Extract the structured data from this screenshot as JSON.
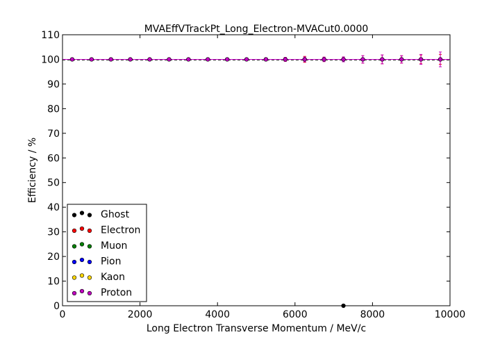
{
  "chart_data": {
    "type": "scatter",
    "title": "MVAEffVTrackPt_Long_Electron-MVACut0.0000",
    "xlabel": "Long Electron Transverse Momentum / MeV/c",
    "ylabel": "Efficiency / %",
    "xlim": [
      0,
      10000
    ],
    "ylim": [
      0,
      110
    ],
    "xticks": [
      0,
      2000,
      4000,
      6000,
      8000,
      10000
    ],
    "yticks": [
      0,
      10,
      20,
      30,
      40,
      50,
      60,
      70,
      80,
      90,
      100,
      110
    ],
    "grid": false,
    "legend_position": "bottom-left",
    "x": [
      250,
      750,
      1250,
      1750,
      2250,
      2750,
      3250,
      3750,
      4250,
      4750,
      5250,
      5750,
      6250,
      6750,
      7250,
      7750,
      8250,
      8750,
      9250,
      9750
    ],
    "series": [
      {
        "name": "Ghost",
        "color": "#000000",
        "values": [
          null,
          null,
          null,
          null,
          null,
          null,
          null,
          null,
          null,
          null,
          null,
          null,
          null,
          null,
          0,
          null,
          null,
          null,
          null,
          null
        ],
        "errors": [
          0,
          0,
          0,
          0,
          0,
          0,
          0,
          0,
          0,
          0,
          0,
          0,
          0,
          0,
          0,
          0,
          0,
          0,
          0,
          0
        ]
      },
      {
        "name": "Electron",
        "color": "#ff0000",
        "values": [
          100,
          100,
          100,
          100,
          100,
          100,
          100,
          100,
          100,
          100,
          100,
          100,
          100,
          100,
          100,
          100,
          100,
          100,
          100,
          100
        ],
        "errors": [
          0.3,
          0.3,
          0.3,
          0.3,
          0.3,
          0.3,
          0.3,
          0.3,
          0.4,
          0.5,
          0.6,
          0.8,
          1.2,
          0.9,
          1.0,
          1.5,
          1.8,
          1.5,
          1.8,
          2.0
        ]
      },
      {
        "name": "Muon",
        "color": "#008000",
        "values": [
          null,
          null,
          null,
          null,
          null,
          null,
          null,
          null,
          null,
          null,
          null,
          null,
          null,
          null,
          null,
          null,
          null,
          null,
          null,
          null
        ],
        "errors": [
          0,
          0,
          0,
          0,
          0,
          0,
          0,
          0,
          0,
          0,
          0,
          0,
          0,
          0,
          0,
          0,
          0,
          0,
          0,
          0
        ]
      },
      {
        "name": "Pion",
        "color": "#0000ff",
        "values": [
          null,
          null,
          null,
          null,
          null,
          null,
          null,
          null,
          null,
          null,
          null,
          null,
          null,
          null,
          null,
          null,
          null,
          null,
          null,
          null
        ],
        "errors": [
          0,
          0,
          0,
          0,
          0,
          0,
          0,
          0,
          0,
          0,
          0,
          0,
          0,
          0,
          0,
          0,
          0,
          0,
          0,
          0
        ]
      },
      {
        "name": "Kaon",
        "color": "#ffd700",
        "values": [
          null,
          null,
          null,
          null,
          null,
          null,
          null,
          null,
          null,
          null,
          null,
          null,
          null,
          null,
          null,
          null,
          null,
          null,
          null,
          null
        ],
        "errors": [
          0,
          0,
          0,
          0,
          0,
          0,
          0,
          0,
          0,
          0,
          0,
          0,
          0,
          0,
          0,
          0,
          0,
          0,
          0,
          0
        ]
      },
      {
        "name": "Proton",
        "color": "#c000c0",
        "values": [
          100,
          100,
          100,
          100,
          100,
          100,
          100,
          100,
          100,
          100,
          100,
          100,
          100,
          100,
          100,
          100,
          100,
          100,
          100,
          100
        ],
        "errors": [
          0.3,
          0.3,
          0.3,
          0.3,
          0.3,
          0.3,
          0.3,
          0.3,
          0.4,
          0.5,
          0.6,
          0.8,
          1.0,
          0.9,
          1.0,
          1.5,
          1.8,
          1.5,
          2.0,
          3.0
        ]
      }
    ]
  }
}
